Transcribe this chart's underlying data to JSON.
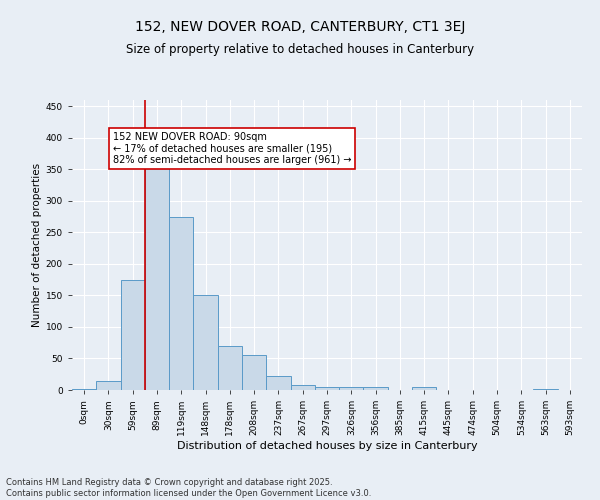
{
  "title": "152, NEW DOVER ROAD, CANTERBURY, CT1 3EJ",
  "subtitle": "Size of property relative to detached houses in Canterbury",
  "xlabel": "Distribution of detached houses by size in Canterbury",
  "ylabel": "Number of detached properties",
  "categories": [
    "0sqm",
    "30sqm",
    "59sqm",
    "89sqm",
    "119sqm",
    "148sqm",
    "178sqm",
    "208sqm",
    "237sqm",
    "267sqm",
    "297sqm",
    "326sqm",
    "356sqm",
    "385sqm",
    "415sqm",
    "445sqm",
    "474sqm",
    "504sqm",
    "534sqm",
    "563sqm",
    "593sqm"
  ],
  "values": [
    2,
    15,
    175,
    375,
    275,
    150,
    70,
    55,
    22,
    8,
    5,
    5,
    5,
    0,
    5,
    0,
    0,
    0,
    0,
    2,
    0
  ],
  "bar_color": "#c9d9e8",
  "bar_edge_color": "#5a9ac8",
  "property_line_index": 3,
  "property_line_color": "#cc0000",
  "annotation_text": "152 NEW DOVER ROAD: 90sqm\n← 17% of detached houses are smaller (195)\n82% of semi-detached houses are larger (961) →",
  "annotation_box_edgecolor": "#cc0000",
  "ylim": [
    0,
    460
  ],
  "yticks": [
    0,
    50,
    100,
    150,
    200,
    250,
    300,
    350,
    400,
    450
  ],
  "background_color": "#e8eef5",
  "plot_background_color": "#e8eef5",
  "grid_color": "#ffffff",
  "footer_line1": "Contains HM Land Registry data © Crown copyright and database right 2025.",
  "footer_line2": "Contains public sector information licensed under the Open Government Licence v3.0.",
  "title_fontsize": 10,
  "subtitle_fontsize": 8.5,
  "xlabel_fontsize": 8,
  "ylabel_fontsize": 7.5,
  "tick_fontsize": 6.5,
  "annotation_fontsize": 7,
  "footer_fontsize": 6
}
